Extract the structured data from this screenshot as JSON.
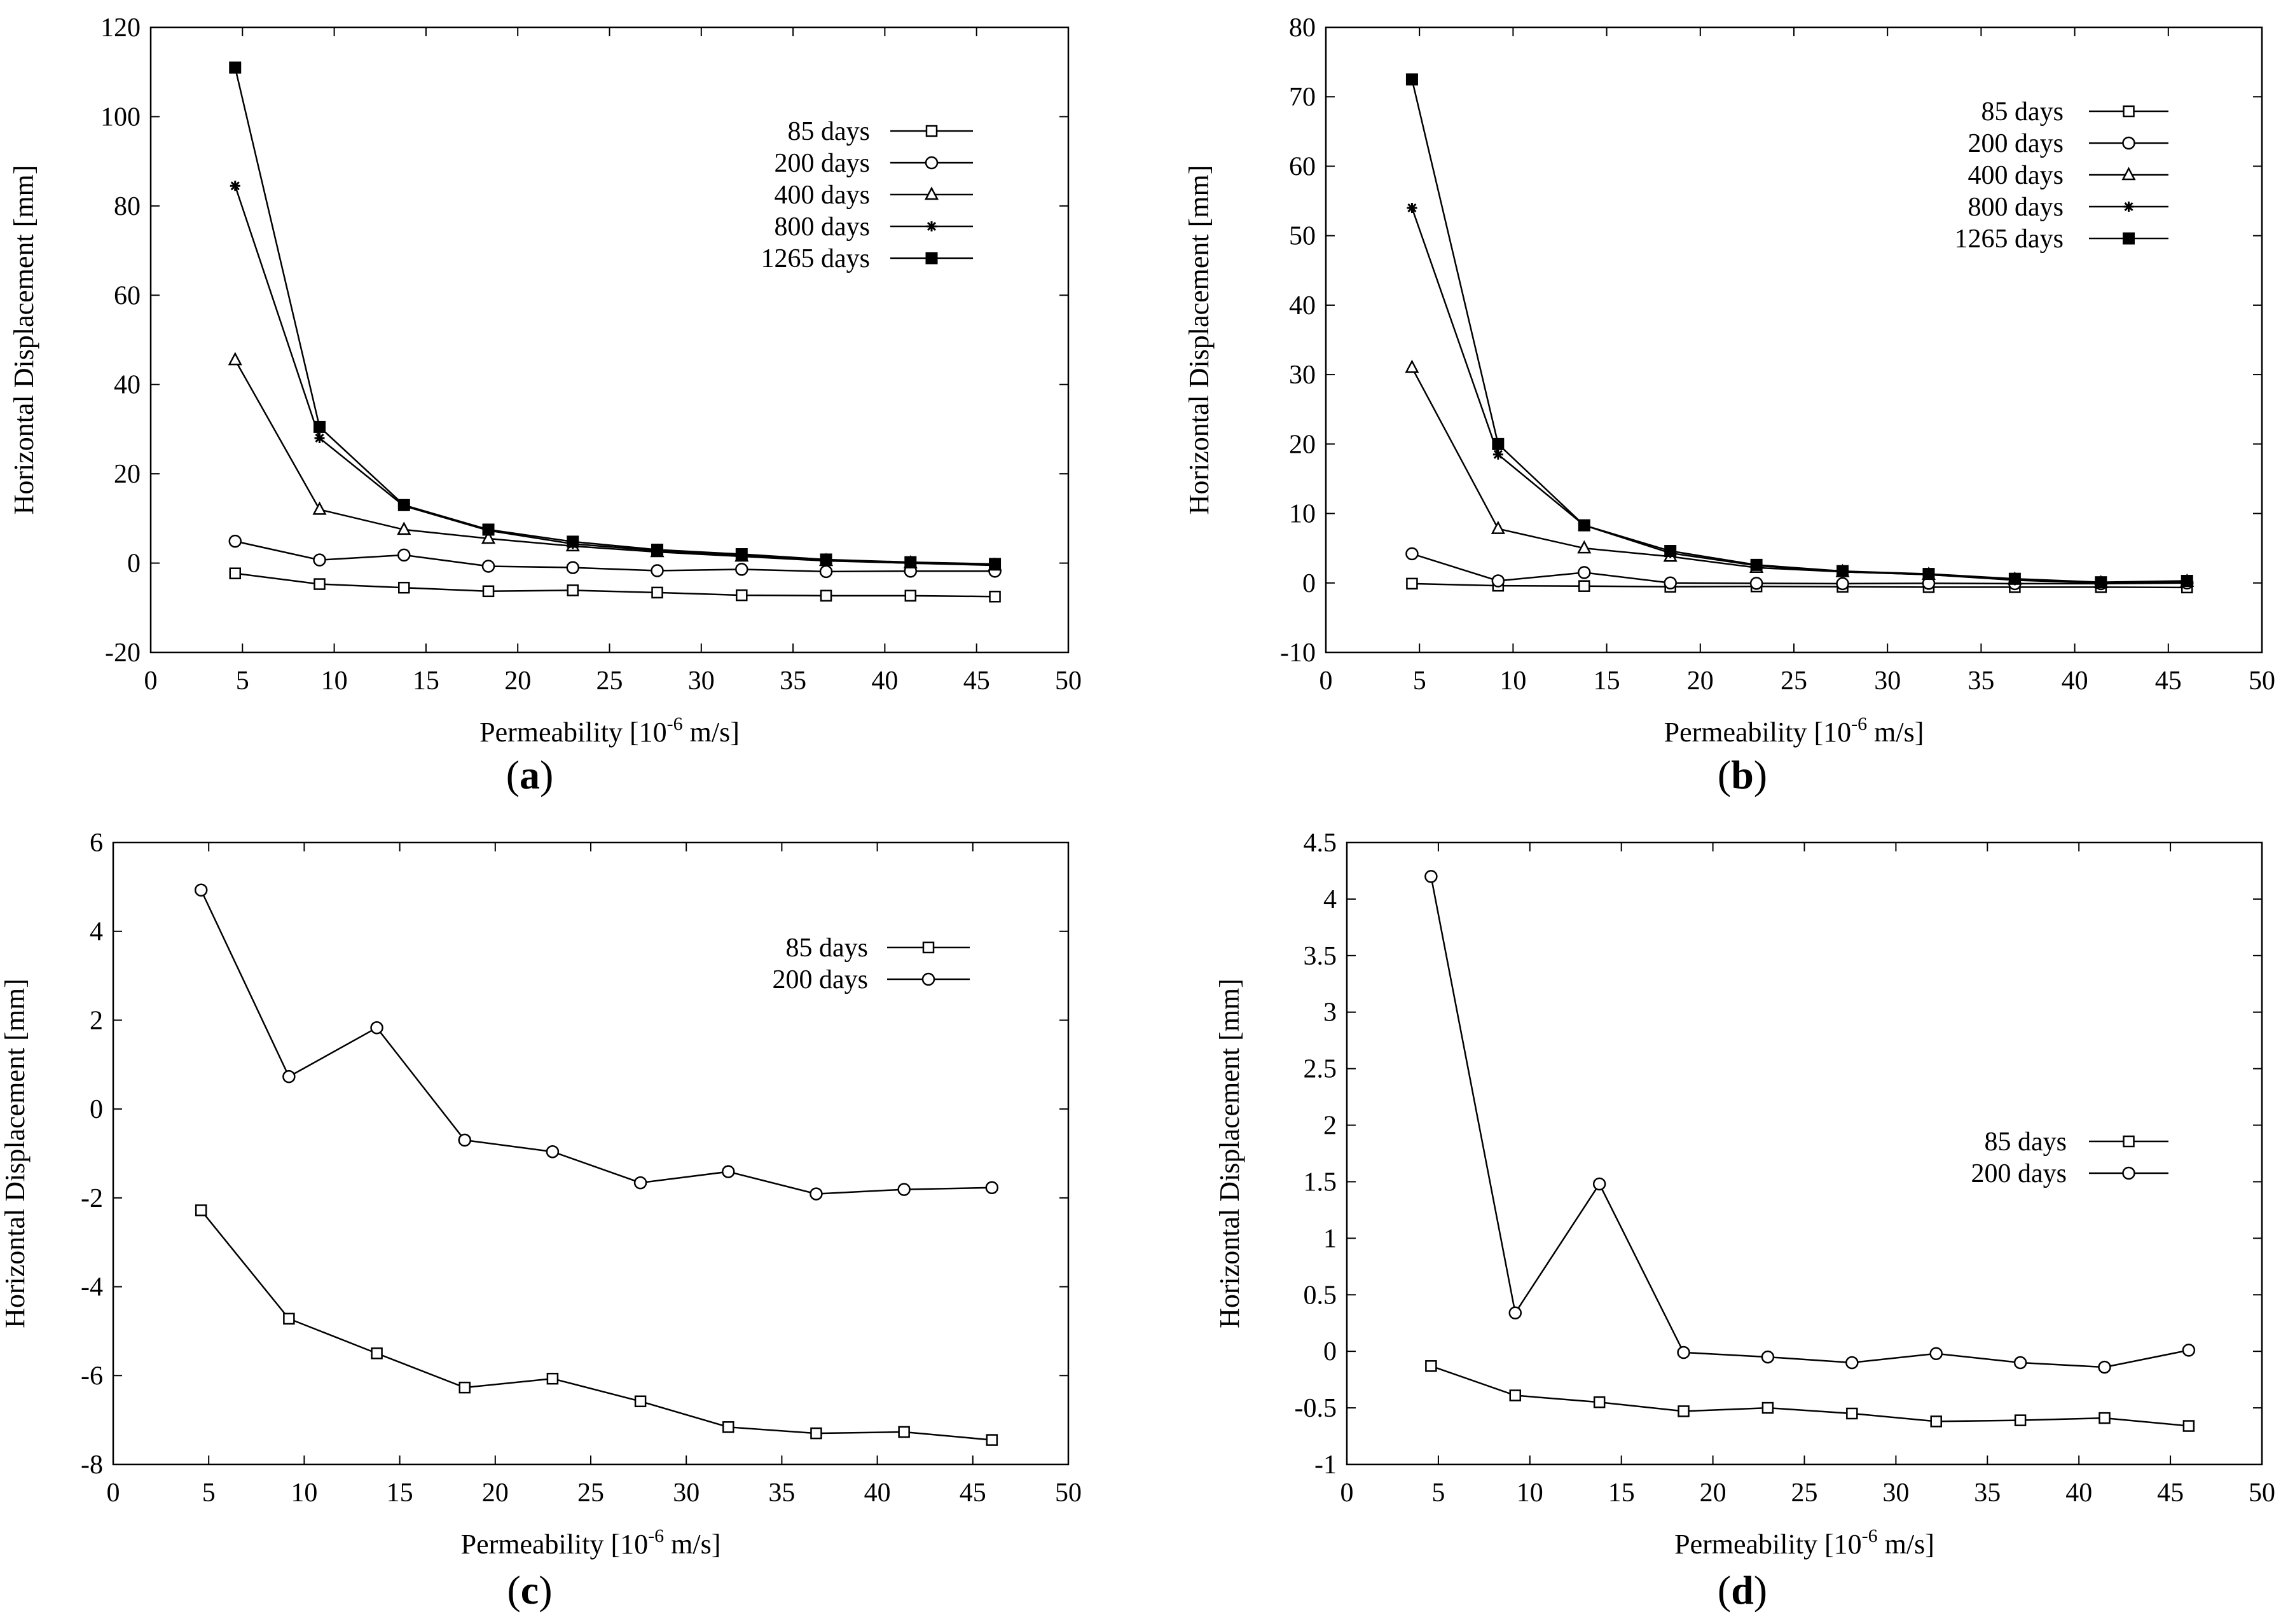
{
  "figure": {
    "subfigure_labels": [
      "(a)",
      "(b)",
      "(c)",
      "(d)"
    ]
  },
  "chart_data": [
    {
      "id": "a",
      "type": "line",
      "label": "(a)",
      "label_letter": "a",
      "xlabel_main": "Permeability [10",
      "xlabel_sup": "-6",
      "xlabel_tail": " m/s]",
      "ylabel": "Horizontal Displacement [mm]",
      "xlim": [
        0,
        50
      ],
      "ylim": [
        -20,
        120
      ],
      "xticks": [
        0,
        5,
        10,
        15,
        20,
        25,
        30,
        35,
        40,
        45,
        50
      ],
      "yticks": [
        -20,
        0,
        20,
        40,
        60,
        80,
        100,
        120
      ],
      "legend_position": "top-right",
      "x": [
        4.6,
        9.2,
        13.8,
        18.4,
        23.0,
        27.6,
        32.2,
        36.8,
        41.4,
        46.0
      ],
      "series": [
        {
          "name": "85 days",
          "marker": "square-open",
          "values": [
            -2.3,
            -4.7,
            -5.5,
            -6.3,
            -6.1,
            -6.6,
            -7.2,
            -7.3,
            -7.3,
            -7.5
          ]
        },
        {
          "name": "200 days",
          "marker": "circle-open",
          "values": [
            4.9,
            0.7,
            1.8,
            -0.7,
            -1.0,
            -1.7,
            -1.4,
            -1.9,
            -1.8,
            -1.8
          ]
        },
        {
          "name": "400 days",
          "marker": "triangle-open",
          "values": [
            45.5,
            12.0,
            7.5,
            5.5,
            3.8,
            2.5,
            1.5,
            0.5,
            0.0,
            -0.5
          ]
        },
        {
          "name": "800 days",
          "marker": "star",
          "values": [
            84.5,
            28.0,
            12.8,
            7.3,
            4.3,
            2.8,
            1.7,
            0.6,
            0.0,
            -0.4
          ]
        },
        {
          "name": "1265 days",
          "marker": "square-filled",
          "values": [
            111.0,
            30.5,
            13.0,
            7.5,
            4.8,
            3.0,
            2.0,
            0.8,
            0.2,
            -0.2
          ]
        }
      ]
    },
    {
      "id": "b",
      "type": "line",
      "label": "(b)",
      "label_letter": "b",
      "xlabel_main": "Permeability [10",
      "xlabel_sup": "-6",
      "xlabel_tail": " m/s]",
      "ylabel": "Horizontal Displacement [mm]",
      "xlim": [
        0,
        50
      ],
      "ylim": [
        -10,
        80
      ],
      "xticks": [
        0,
        5,
        10,
        15,
        20,
        25,
        30,
        35,
        40,
        45,
        50
      ],
      "yticks": [
        -10,
        0,
        10,
        20,
        30,
        40,
        50,
        60,
        70,
        80
      ],
      "legend_position": "top-right",
      "x": [
        4.6,
        9.2,
        13.8,
        18.4,
        23.0,
        27.6,
        32.2,
        36.8,
        41.4,
        46.0
      ],
      "series": [
        {
          "name": "85 days",
          "marker": "square-open",
          "values": [
            -0.1,
            -0.4,
            -0.45,
            -0.55,
            -0.5,
            -0.55,
            -0.6,
            -0.6,
            -0.6,
            -0.65
          ]
        },
        {
          "name": "200 days",
          "marker": "circle-open",
          "values": [
            4.2,
            0.3,
            1.5,
            0.0,
            -0.05,
            -0.1,
            -0.05,
            -0.1,
            -0.1,
            0.0
          ]
        },
        {
          "name": "400 days",
          "marker": "triangle-open",
          "values": [
            31.0,
            7.8,
            5.0,
            3.8,
            2.2,
            1.6,
            1.2,
            0.5,
            0.0,
            0.2
          ]
        },
        {
          "name": "800 days",
          "marker": "star",
          "values": [
            54.0,
            18.5,
            8.3,
            4.3,
            2.5,
            1.6,
            1.2,
            0.4,
            0.0,
            0.2
          ]
        },
        {
          "name": "1265 days",
          "marker": "square-filled",
          "values": [
            72.5,
            20.0,
            8.3,
            4.6,
            2.6,
            1.7,
            1.3,
            0.6,
            0.1,
            0.3
          ]
        }
      ]
    },
    {
      "id": "c",
      "type": "line",
      "label": "(c)",
      "label_letter": "c",
      "xlabel_main": "Permeability [10",
      "xlabel_sup": "-6",
      "xlabel_tail": " m/s]",
      "ylabel": "Horizontal Displacement [mm]",
      "xlim": [
        0,
        50
      ],
      "ylim": [
        -8,
        6
      ],
      "xticks": [
        0,
        5,
        10,
        15,
        20,
        25,
        30,
        35,
        40,
        45,
        50
      ],
      "yticks": [
        -8,
        -6,
        -4,
        -2,
        0,
        2,
        4,
        6
      ],
      "legend_position": "top-right",
      "x": [
        4.6,
        9.2,
        13.8,
        18.4,
        23.0,
        27.6,
        32.2,
        36.8,
        41.4,
        46.0
      ],
      "series": [
        {
          "name": "85 days",
          "marker": "square-open",
          "values": [
            -2.28,
            -4.72,
            -5.5,
            -6.27,
            -6.07,
            -6.58,
            -7.16,
            -7.3,
            -7.27,
            -7.45
          ]
        },
        {
          "name": "200 days",
          "marker": "circle-open",
          "values": [
            4.93,
            0.73,
            1.83,
            -0.7,
            -0.96,
            -1.66,
            -1.41,
            -1.91,
            -1.81,
            -1.77
          ]
        }
      ]
    },
    {
      "id": "d",
      "type": "line",
      "label": "(d)",
      "label_letter": "d",
      "xlabel_main": "Permeability [10",
      "xlabel_sup": "-6",
      "xlabel_tail": " m/s]",
      "ylabel": "Horizontal Displacement [mm]",
      "xlim": [
        0,
        50
      ],
      "ylim": [
        -1,
        4.5
      ],
      "xticks": [
        0,
        5,
        10,
        15,
        20,
        25,
        30,
        35,
        40,
        45,
        50
      ],
      "yticks": [
        -1,
        -0.5,
        0,
        0.5,
        1,
        1.5,
        2,
        2.5,
        3,
        3.5,
        4,
        4.5
      ],
      "legend_position": "right",
      "x": [
        4.6,
        9.2,
        13.8,
        18.4,
        23.0,
        27.6,
        32.2,
        36.8,
        41.4,
        46.0
      ],
      "series": [
        {
          "name": "85 days",
          "marker": "square-open",
          "values": [
            -0.13,
            -0.39,
            -0.45,
            -0.53,
            -0.5,
            -0.55,
            -0.62,
            -0.61,
            -0.59,
            -0.66
          ]
        },
        {
          "name": "200 days",
          "marker": "circle-open",
          "values": [
            4.2,
            0.34,
            1.48,
            -0.01,
            -0.05,
            -0.1,
            -0.02,
            -0.1,
            -0.14,
            0.01
          ]
        }
      ]
    }
  ]
}
